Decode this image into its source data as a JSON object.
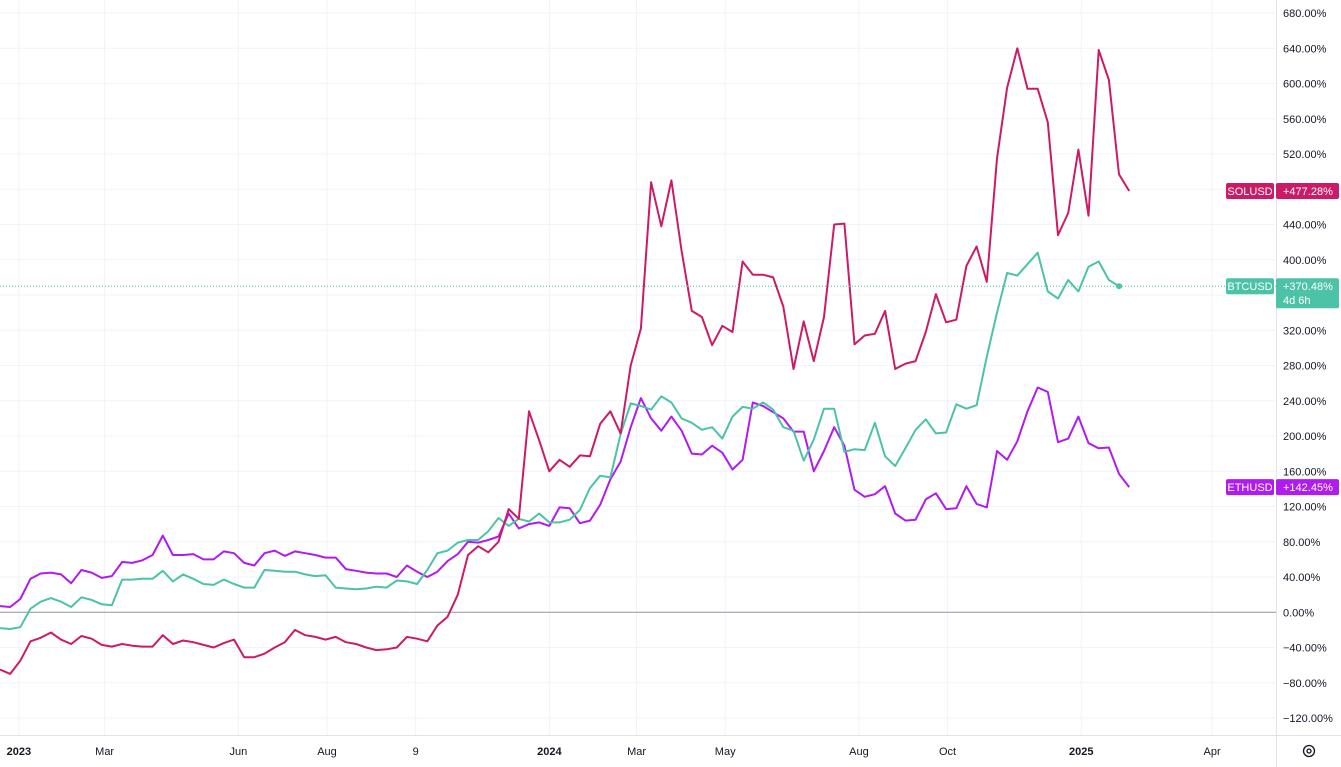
{
  "chart_data": {
    "type": "line",
    "y_unit": "%",
    "ylim": [
      -130,
      690
    ],
    "y_ticks": [
      "680.00%",
      "640.00%",
      "600.00%",
      "560.00%",
      "520.00%",
      "480.00%",
      "440.00%",
      "400.00%",
      "360.00%",
      "320.00%",
      "280.00%",
      "240.00%",
      "200.00%",
      "160.00%",
      "120.00%",
      "80.00%",
      "40.00%",
      "0.00%",
      "−40.00%",
      "−80.00%",
      "−120.00%"
    ],
    "y_tick_values": [
      680,
      640,
      600,
      560,
      520,
      480,
      440,
      400,
      360,
      320,
      280,
      240,
      200,
      160,
      120,
      80,
      40,
      0,
      -40,
      -80,
      -120
    ],
    "x_range": [
      "2022-12-19",
      "2025-05-15"
    ],
    "x_ticks": [
      {
        "label": "2023",
        "date": "2023-01-01",
        "bold": true
      },
      {
        "label": "Mar",
        "date": "2023-03-01",
        "bold": false
      },
      {
        "label": "Jun",
        "date": "2023-06-01",
        "bold": false
      },
      {
        "label": "Aug",
        "date": "2023-08-01",
        "bold": false
      },
      {
        "label": "9",
        "date": "2023-10-01",
        "bold": false
      },
      {
        "label": "2024",
        "date": "2024-01-01",
        "bold": true
      },
      {
        "label": "Mar",
        "date": "2024-03-01",
        "bold": false
      },
      {
        "label": "May",
        "date": "2024-05-01",
        "bold": false
      },
      {
        "label": "Aug",
        "date": "2024-08-01",
        "bold": false
      },
      {
        "label": "Oct",
        "date": "2024-10-01",
        "bold": false
      },
      {
        "label": "2025",
        "date": "2025-01-01",
        "bold": true
      },
      {
        "label": "Apr",
        "date": "2025-04-01",
        "bold": false
      }
    ],
    "grid": true,
    "series": [
      {
        "name": "SOLUSD",
        "last_label": "+477.28%",
        "color": "#cc1b66",
        "start_date": "2022-12-19",
        "step_days": 7,
        "values": [
          -65,
          -70,
          -55,
          -33,
          -29,
          -23,
          -31,
          -36,
          -27,
          -30,
          -37,
          -39,
          -36,
          -38,
          -39,
          -39,
          -26,
          -36,
          -32,
          -34,
          -37,
          -40,
          -35,
          -31,
          -51,
          -51,
          -47,
          -40,
          -34,
          -20,
          -26,
          -28,
          -31,
          -28,
          -34,
          -36,
          -40,
          -43,
          -42,
          -40,
          -28,
          -30,
          -33,
          -15,
          -5,
          20,
          65,
          75,
          68,
          80,
          117,
          106,
          228,
          195,
          160,
          173,
          165,
          178,
          177,
          214,
          228,
          203,
          280,
          322,
          488,
          438,
          490,
          410,
          342,
          335,
          303,
          325,
          318,
          398,
          383,
          383,
          380,
          347,
          276,
          330,
          285,
          335,
          440,
          441,
          304,
          314,
          316,
          342,
          276,
          282,
          285,
          318,
          361,
          329,
          332,
          393,
          415,
          375,
          515,
          595,
          640,
          594,
          594,
          556,
          428,
          453,
          525,
          450,
          638,
          604,
          497,
          478
        ]
      },
      {
        "name": "BTCUSD",
        "last_label": "+370.48%",
        "countdown": "4d 6h",
        "color": "#4cc2a6",
        "start_date": "2022-12-19",
        "step_days": 7,
        "values": [
          -18,
          -19,
          -17,
          4,
          12,
          16,
          12,
          6,
          17,
          14,
          9,
          8,
          37,
          37,
          38,
          38,
          47,
          35,
          43,
          38,
          32,
          31,
          37,
          32,
          28,
          28,
          48,
          47,
          46,
          46,
          43,
          41,
          42,
          28,
          27,
          26,
          27,
          29,
          28,
          36,
          35,
          32,
          48,
          67,
          70,
          79,
          82,
          82,
          92,
          107,
          98,
          106,
          103,
          112,
          102,
          102,
          105,
          116,
          141,
          155,
          153,
          202,
          237,
          234,
          230,
          245,
          238,
          220,
          215,
          207,
          210,
          197,
          222,
          233,
          231,
          238,
          230,
          210,
          206,
          172,
          196,
          231,
          231,
          182,
          185,
          184,
          215,
          177,
          166,
          186,
          207,
          219,
          203,
          204,
          236,
          231,
          235,
          290,
          340,
          385,
          382,
          395,
          408,
          364,
          356,
          377,
          364,
          392,
          398,
          377,
          370
        ]
      },
      {
        "name": "ETHUSD",
        "last_label": "+142.45%",
        "color": "#b01bf0",
        "start_date": "2022-12-19",
        "step_days": 7,
        "values": [
          7,
          6,
          15,
          38,
          44,
          45,
          43,
          33,
          48,
          45,
          39,
          41,
          57,
          56,
          59,
          65,
          87,
          65,
          65,
          66,
          60,
          60,
          69,
          67,
          56,
          53,
          67,
          70,
          64,
          69,
          67,
          65,
          62,
          62,
          49,
          47,
          45,
          44,
          44,
          40,
          53,
          46,
          40,
          46,
          58,
          66,
          80,
          79,
          82,
          86,
          112,
          95,
          100,
          102,
          98,
          119,
          118,
          101,
          104,
          122,
          151,
          171,
          210,
          243,
          220,
          206,
          222,
          206,
          180,
          179,
          189,
          181,
          162,
          173,
          238,
          234,
          227,
          220,
          205,
          205,
          160,
          183,
          210,
          189,
          139,
          131,
          134,
          143,
          112,
          104,
          105,
          128,
          135,
          117,
          118,
          143,
          123,
          119,
          183,
          173,
          194,
          228,
          255,
          250,
          193,
          197,
          222,
          192,
          186,
          187,
          157,
          142
        ]
      }
    ]
  },
  "settings_icon": "gear-icon"
}
